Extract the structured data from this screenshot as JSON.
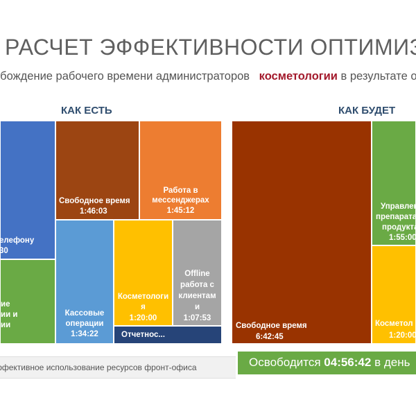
{
  "title": "РАСЧЕТ ЭФФЕКТИВНОСТИ ОПТИМИЗАЦ",
  "subtitle": {
    "lead": "обождение рабочего времени администраторов ",
    "accent": "косметологии",
    "tail": " в результате о"
  },
  "as_is": {
    "header": "КАК ЕСТЬ",
    "tiles": {
      "phone": {
        "line1": "елефону",
        "line2": "30"
      },
      "other": {
        "line1": "ие",
        "line2": "ии и",
        "line3": "ии"
      },
      "free_time": {
        "name": "Свободное время",
        "value": "1:46:03"
      },
      "messengers": {
        "name1": "Работа в",
        "name2": "мессенджерах",
        "value": "1:45:12"
      },
      "cash": {
        "name1": "Кассовые",
        "name2": "операции",
        "value": "1:34:22"
      },
      "cosmetology": {
        "name1": "Косметологи",
        "name2": "я",
        "value": "1:20:00"
      },
      "offline": {
        "name1": "Offline",
        "name2": "работа с",
        "name3": "клиентам",
        "name4": "и",
        "value": "1:07:53"
      },
      "reports": {
        "name": "Отчетнос..."
      }
    }
  },
  "to_be": {
    "header": "КАК БУДЕТ",
    "tiles": {
      "free_time": {
        "name": "Свободное время",
        "value": "6:42:45"
      },
      "management": {
        "name1": "Управлен",
        "name2": "препарата",
        "name3": "продукта",
        "value": "1:55:00"
      },
      "cosmetology": {
        "name": "Косметол",
        "value": "1:20:00"
      }
    }
  },
  "footnote": "ффективное использование ресурсов фронт-офиса",
  "banner": {
    "prefix": "Освободится ",
    "value": "04:56:42",
    "suffix": " в день"
  },
  "colors": {
    "blue": "#4472c4",
    "green": "#6aaa45",
    "brown": "#9c4512",
    "orange": "#ed7d31",
    "light_blue": "#5b9bd5",
    "yellow": "#ffc000",
    "gray": "#a5a5a5",
    "navy": "#264478",
    "dark_orange": "#993300"
  }
}
